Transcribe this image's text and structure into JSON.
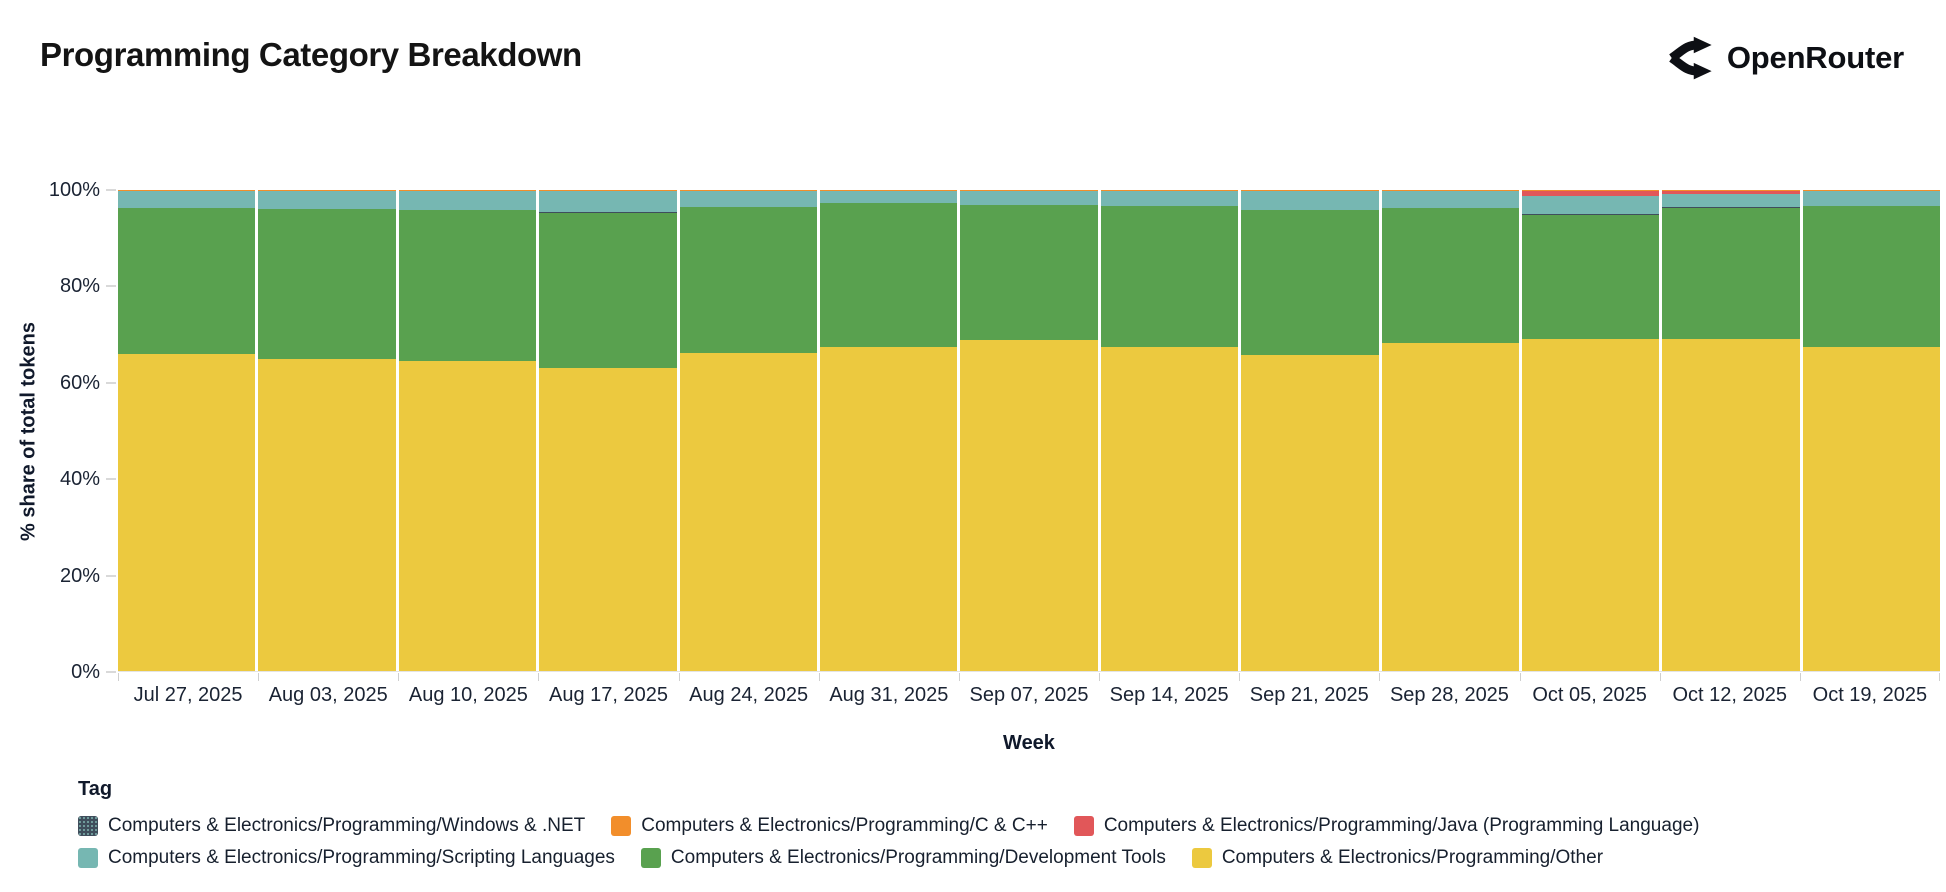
{
  "header": {
    "title": "Programming Category Breakdown",
    "brand": "OpenRouter"
  },
  "legend": {
    "title": "Tag",
    "rows": [
      [
        "windows_net",
        "c_cpp",
        "java"
      ],
      [
        "scripting",
        "dev_tools",
        "other"
      ]
    ]
  },
  "chart_data": {
    "type": "bar",
    "stacked": true,
    "percent": true,
    "title": "Programming Category Breakdown",
    "xlabel": "Week",
    "ylabel": "% share of total tokens",
    "ylim": [
      0,
      100
    ],
    "y_ticks": [
      "0%",
      "20%",
      "40%",
      "60%",
      "80%",
      "100%"
    ],
    "grid": false,
    "legend_position": "bottom",
    "x": [
      "Jul 27, 2025",
      "Aug 03, 2025",
      "Aug 10, 2025",
      "Aug 17, 2025",
      "Aug 24, 2025",
      "Aug 31, 2025",
      "Sep 07, 2025",
      "Sep 14, 2025",
      "Sep 21, 2025",
      "Sep 28, 2025",
      "Oct 05, 2025",
      "Oct 12, 2025",
      "Oct 19, 2025"
    ],
    "series": [
      {
        "key": "other",
        "name": "Computers & Electronics/Programming/Other",
        "color": "#ecc93f",
        "values": [
          66.0,
          64.9,
          64.4,
          63.1,
          66.2,
          67.4,
          68.9,
          67.3,
          65.6,
          68.2,
          69.1,
          69.1,
          67.4
        ]
      },
      {
        "key": "dev_tools",
        "name": "Computers & Electronics/Programming/Development Tools",
        "color": "#59a14f",
        "values": [
          30.2,
          31.1,
          31.4,
          32.1,
          30.2,
          29.8,
          27.9,
          29.3,
          30.2,
          28.0,
          25.7,
          27.2,
          29.2
        ]
      },
      {
        "key": "windows_net",
        "name": "Computers & Electronics/Programming/Windows & .NET",
        "color": "#3f4e5c",
        "pattern": true,
        "values": [
          0.15,
          0.15,
          0.15,
          0.15,
          0.15,
          0.15,
          0.15,
          0.15,
          0.15,
          0.15,
          0.15,
          0.15,
          0.15
        ]
      },
      {
        "key": "scripting",
        "name": "Computers & Electronics/Programming/Scripting Languages",
        "color": "#76b7b2",
        "values": [
          3.35,
          3.55,
          3.75,
          4.35,
          3.15,
          2.35,
          2.75,
          2.95,
          3.75,
          3.35,
          3.9,
          2.7,
          2.95
        ]
      },
      {
        "key": "java",
        "name": "Computers & Electronics/Programming/Java (Programming Language)",
        "color": "#e15759",
        "values": [
          0,
          0,
          0,
          0,
          0,
          0,
          0,
          0,
          0,
          0,
          1.0,
          0.75,
          0
        ]
      },
      {
        "key": "c_cpp",
        "name": "Computers & Electronics/Programming/C & C++",
        "color": "#f28e2b",
        "values": [
          0.3,
          0.3,
          0.3,
          0.3,
          0.3,
          0.3,
          0.3,
          0.3,
          0.3,
          0.3,
          0.15,
          0.1,
          0.3
        ]
      }
    ]
  }
}
